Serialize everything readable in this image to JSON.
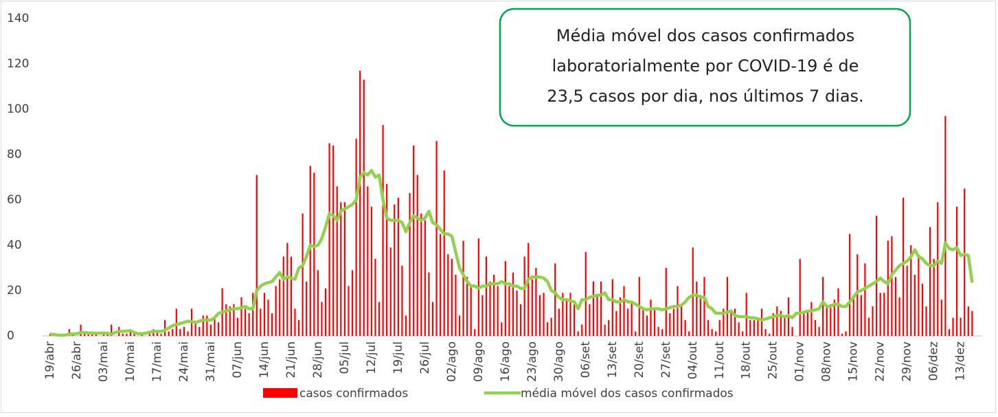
{
  "chart_data": {
    "type": "bar_line",
    "annotation": [
      "Média móvel dos casos confirmados",
      "laboratorialmente por COVID-19 é de",
      "23,5 casos por dia, nos últimos 7 dias."
    ],
    "categories": [
      "19/abr",
      null,
      null,
      null,
      null,
      null,
      null,
      "26/abr",
      null,
      null,
      null,
      null,
      null,
      null,
      "03/mai",
      null,
      null,
      null,
      null,
      null,
      null,
      "10/mai",
      null,
      null,
      null,
      null,
      null,
      null,
      "17/mai",
      null,
      null,
      null,
      null,
      null,
      null,
      "24/mai",
      null,
      null,
      null,
      null,
      null,
      null,
      "31/mai",
      null,
      null,
      null,
      null,
      null,
      null,
      "07/jun",
      null,
      null,
      null,
      null,
      null,
      null,
      "14/jun",
      null,
      null,
      null,
      null,
      null,
      null,
      "21/jun",
      null,
      null,
      null,
      null,
      null,
      null,
      "28/jun",
      null,
      null,
      null,
      null,
      null,
      null,
      "05/jul",
      null,
      null,
      null,
      null,
      null,
      null,
      "12/jul",
      null,
      null,
      null,
      null,
      null,
      null,
      "19/jul",
      null,
      null,
      null,
      null,
      null,
      null,
      "26/jul",
      null,
      null,
      null,
      null,
      null,
      null,
      "02/ago",
      null,
      null,
      null,
      null,
      null,
      null,
      "09/ago",
      null,
      null,
      null,
      null,
      null,
      null,
      "16/ago",
      null,
      null,
      null,
      null,
      null,
      null,
      "23/ago",
      null,
      null,
      null,
      null,
      null,
      null,
      "30/ago",
      null,
      null,
      null,
      null,
      null,
      null,
      "06/set",
      null,
      null,
      null,
      null,
      null,
      null,
      "13/set",
      null,
      null,
      null,
      null,
      null,
      null,
      "20/set",
      null,
      null,
      null,
      null,
      null,
      null,
      "27/set",
      null,
      null,
      null,
      null,
      null,
      null,
      "04/out",
      null,
      null,
      null,
      null,
      null,
      null,
      "11/out",
      null,
      null,
      null,
      null,
      null,
      null,
      "18/out",
      null,
      null,
      null,
      null,
      null,
      null,
      "25/out",
      null,
      null,
      null,
      null,
      null,
      null,
      "01/nov",
      null,
      null,
      null,
      null,
      null,
      null,
      "08/nov",
      null,
      null,
      null,
      null,
      null,
      null,
      "15/nov",
      null,
      null,
      null,
      null,
      null,
      null,
      "22/nov",
      null,
      null,
      null,
      null,
      null,
      null,
      "29/nov",
      null,
      null,
      null,
      null,
      null,
      null,
      "06/dez",
      null,
      null,
      null,
      null,
      null,
      null,
      "13/dez",
      null,
      null,
      null
    ],
    "series": [
      {
        "name": "casos confirmados",
        "type": "bar",
        "color": "#ff0000",
        "values": [
          1,
          1,
          0,
          0,
          0,
          3,
          1,
          0,
          5,
          1,
          1,
          1,
          1,
          0,
          1,
          1,
          5,
          0,
          4,
          1,
          1,
          3,
          1,
          0,
          1,
          0,
          2,
          3,
          2,
          1,
          7,
          2,
          3,
          12,
          3,
          4,
          2,
          12,
          6,
          4,
          9,
          9,
          5,
          8,
          6,
          21,
          14,
          13,
          14,
          8,
          17,
          12,
          10,
          19,
          71,
          12,
          19,
          16,
          10,
          22,
          25,
          35,
          41,
          35,
          12,
          7,
          54,
          24,
          75,
          72,
          29,
          15,
          21,
          85,
          84,
          66,
          59,
          59,
          22,
          29,
          87,
          117,
          113,
          66,
          57,
          34,
          15,
          93,
          67,
          39,
          58,
          61,
          31,
          9,
          63,
          84,
          71,
          54,
          51,
          28,
          15,
          86,
          45,
          73,
          36,
          34,
          27,
          9,
          42,
          26,
          22,
          3,
          43,
          18,
          35,
          24,
          27,
          22,
          6,
          33,
          22,
          28,
          20,
          14,
          35,
          41,
          25,
          30,
          18,
          19,
          6,
          8,
          32,
          12,
          19,
          16,
          19,
          14,
          2,
          5,
          37,
          14,
          24,
          18,
          24,
          5,
          7,
          25,
          11,
          17,
          22,
          12,
          15,
          2,
          26,
          12,
          9,
          16,
          12,
          4,
          3,
          30,
          10,
          12,
          22,
          13,
          7,
          2,
          39,
          24,
          18,
          26,
          7,
          3,
          2,
          7,
          12,
          26,
          11,
          12,
          6,
          2,
          19,
          7,
          7,
          8,
          12,
          3,
          1,
          10,
          13,
          11,
          9,
          17,
          4,
          0,
          34,
          10,
          11,
          15,
          7,
          4,
          26,
          13,
          14,
          16,
          21,
          1,
          2,
          45,
          18,
          36,
          18,
          32,
          8,
          13,
          53,
          19,
          19,
          42,
          44,
          26,
          17,
          61,
          31,
          40,
          27,
          36,
          23,
          13,
          48,
          34,
          59,
          16,
          97,
          3,
          8,
          57,
          8,
          65,
          13,
          11
        ]
      },
      {
        "name": "média móvel dos casos confirmados",
        "type": "line",
        "color": "#92d050",
        "values": [
          0.8,
          0.6,
          0.4,
          0.3,
          0.4,
          0.7,
          0.9,
          1,
          1.5,
          1.5,
          1.3,
          1.3,
          1.2,
          1.2,
          1.3,
          1.2,
          0.8,
          1.5,
          2,
          2,
          2.2,
          2.3,
          1.5,
          1,
          1,
          1.2,
          1.6,
          2,
          2,
          2,
          2.5,
          3.5,
          4.5,
          5,
          5.5,
          6,
          6.5,
          6.3,
          6,
          6.5,
          7,
          7,
          7,
          8,
          10,
          10.5,
          11,
          11.5,
          12,
          12,
          12.5,
          13,
          12,
          12,
          20,
          22,
          23,
          23.5,
          24,
          26,
          28,
          25,
          26,
          25.5,
          25,
          30,
          31,
          35,
          40,
          39.5,
          40,
          43,
          48,
          54,
          53,
          51,
          55,
          56,
          57,
          58,
          60,
          70,
          72,
          71,
          73,
          70,
          71,
          60,
          52,
          51,
          51,
          51,
          50,
          46,
          50,
          53,
          52,
          51,
          52,
          55,
          50,
          49,
          47,
          45,
          45,
          44,
          37,
          30,
          27,
          24,
          22,
          22,
          21,
          22,
          22,
          23,
          23,
          23,
          24,
          23,
          23,
          22,
          22,
          21,
          21,
          25,
          26,
          26,
          26,
          25.5,
          24,
          20,
          19,
          17,
          16,
          16,
          15.5,
          15,
          12,
          16,
          16,
          17,
          17.5,
          18,
          18,
          19,
          16,
          16,
          15,
          15,
          16,
          15,
          15,
          14,
          13,
          12,
          11.5,
          12,
          12,
          12,
          11.5,
          12,
          12.5,
          13,
          13,
          13.5,
          15,
          17,
          18,
          18,
          17,
          17,
          13,
          12,
          10,
          10,
          10,
          10.5,
          11,
          9,
          8.5,
          8.5,
          8.5,
          8,
          8,
          7.5,
          7,
          7.5,
          8,
          8.5,
          9,
          9,
          8.5,
          9,
          8,
          10,
          10,
          10.5,
          11,
          11,
          11.5,
          12,
          15,
          13,
          13,
          14,
          14,
          13,
          13,
          15,
          17,
          19.5,
          20,
          21,
          22,
          23,
          24,
          25.5,
          24,
          23,
          27,
          29,
          31,
          32,
          33,
          35,
          38,
          35,
          34,
          32,
          31,
          31,
          33,
          32,
          41,
          38.5,
          38,
          39,
          35.5,
          36,
          35.5,
          23.5
        ]
      }
    ],
    "ylim": [
      0,
      140
    ],
    "yticks": [
      0,
      20,
      40,
      60,
      80,
      100,
      120,
      140
    ]
  }
}
